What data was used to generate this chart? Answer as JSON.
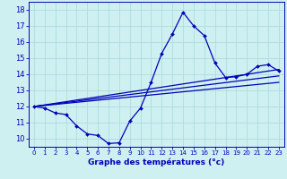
{
  "title": "",
  "xlabel": "Graphe des températures (°c)",
  "ylabel": "",
  "bg_color": "#cff0f0",
  "line_color": "#0000bb",
  "grid_color": "#aadddd",
  "x": [
    0,
    1,
    2,
    3,
    4,
    5,
    6,
    7,
    8,
    9,
    10,
    11,
    12,
    13,
    14,
    15,
    16,
    17,
    18,
    19,
    20,
    21,
    22,
    23
  ],
  "y": [
    12.0,
    11.9,
    11.6,
    11.5,
    10.8,
    10.3,
    10.2,
    9.7,
    9.75,
    11.1,
    11.9,
    13.5,
    15.3,
    16.5,
    17.85,
    17.0,
    16.4,
    14.7,
    13.8,
    13.85,
    14.0,
    14.5,
    14.6,
    14.2
  ],
  "ylim": [
    9.5,
    18.5
  ],
  "xlim": [
    -0.5,
    23.5
  ],
  "yticks": [
    10,
    11,
    12,
    13,
    14,
    15,
    16,
    17,
    18
  ],
  "xticks": [
    0,
    1,
    2,
    3,
    4,
    5,
    6,
    7,
    8,
    9,
    10,
    11,
    12,
    13,
    14,
    15,
    16,
    17,
    18,
    19,
    20,
    21,
    22,
    23
  ],
  "regression_lines": [
    {
      "x0": 0,
      "y0": 12.0,
      "x1": 23,
      "y1": 14.3
    },
    {
      "x0": 0,
      "y0": 12.0,
      "x1": 23,
      "y1": 13.9
    },
    {
      "x0": 0,
      "y0": 12.0,
      "x1": 23,
      "y1": 13.5
    }
  ]
}
